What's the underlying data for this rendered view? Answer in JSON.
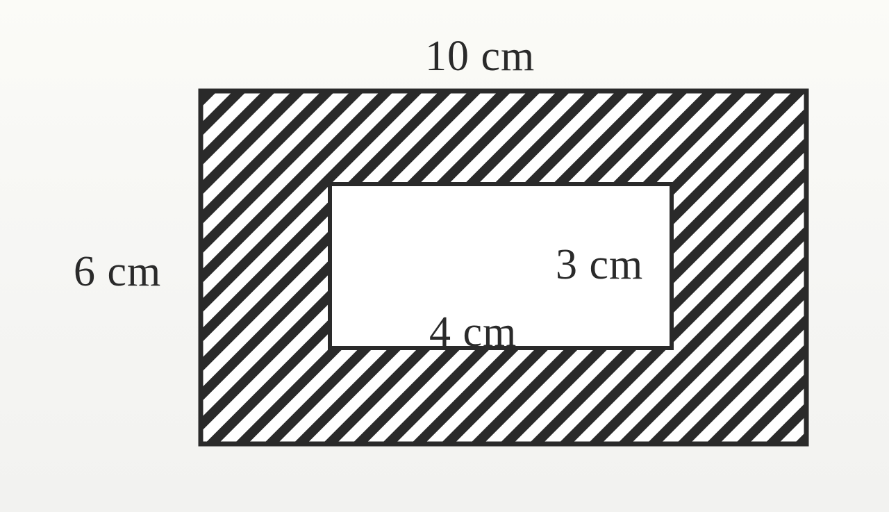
{
  "figure": {
    "outer_width_label": "10 cm",
    "outer_height_label": "6 cm",
    "inner_height_label": "3 cm",
    "inner_width_label": "4 cm",
    "colors": {
      "ink": "#2a2a2a",
      "paper": "#f6f6f4"
    }
  }
}
